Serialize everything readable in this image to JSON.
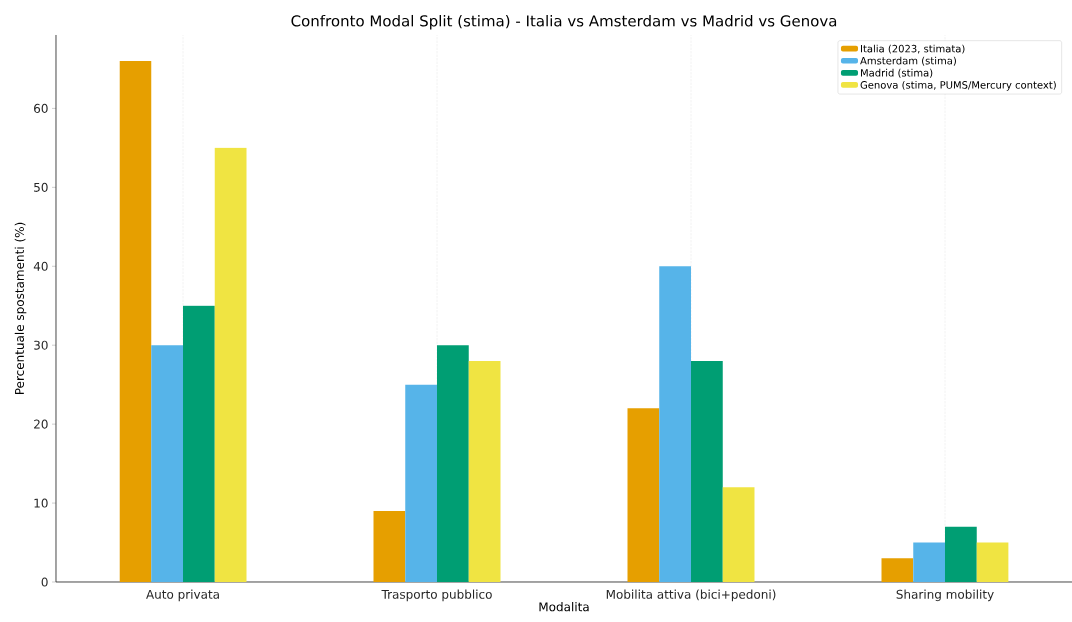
{
  "chart_data": {
    "type": "bar",
    "title": "Confronto Modal Split (stima) - Italia vs Amsterdam vs Madrid vs Genova",
    "xlabel": "Modalita",
    "ylabel": "Percentuale spostamenti (%)",
    "categories": [
      "Auto privata",
      "Trasporto pubblico",
      "Mobilita attiva (bici+pedoni)",
      "Sharing mobility"
    ],
    "series": [
      {
        "name": "Italia (2023, stimata)",
        "color": "#e69f00",
        "values": [
          66,
          9,
          22,
          3
        ]
      },
      {
        "name": "Amsterdam (stima)",
        "color": "#56b4e9",
        "values": [
          30,
          25,
          40,
          5
        ]
      },
      {
        "name": "Madrid (stima)",
        "color": "#009e73",
        "values": [
          35,
          30,
          28,
          7
        ]
      },
      {
        "name": "Genova (stima, PUMS/Mercury context)",
        "color": "#f0e442",
        "values": [
          55,
          28,
          12,
          5
        ]
      }
    ],
    "ylim": [
      0,
      69.3
    ],
    "yticks": [
      0,
      10,
      20,
      30,
      40,
      50,
      60
    ],
    "grid": "x",
    "legend": "top right"
  }
}
